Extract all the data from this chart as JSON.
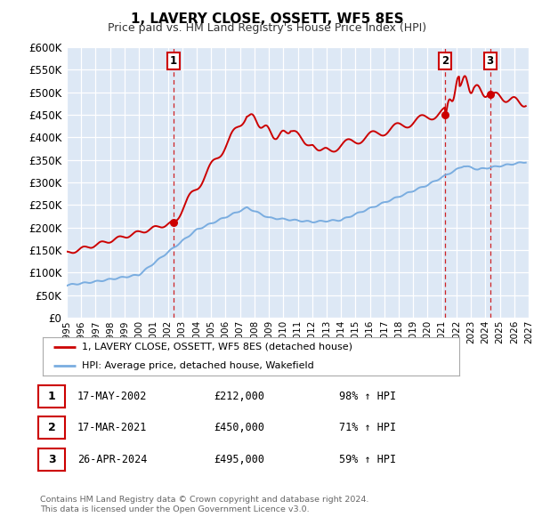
{
  "title": "1, LAVERY CLOSE, OSSETT, WF5 8ES",
  "subtitle": "Price paid vs. HM Land Registry's House Price Index (HPI)",
  "red_color": "#cc0000",
  "blue_color": "#7aade0",
  "background_color": "#ffffff",
  "plot_bg": "#dde8f5",
  "grid_color": "#ffffff",
  "sale_points": [
    {
      "label": "1",
      "date_x": 2002.38,
      "price": 212000,
      "date_str": "17-MAY-2002",
      "pct": "98%"
    },
    {
      "label": "2",
      "date_x": 2021.21,
      "price": 450000,
      "date_str": "17-MAR-2021",
      "pct": "71%"
    },
    {
      "label": "3",
      "date_x": 2024.32,
      "price": 495000,
      "date_str": "26-APR-2024",
      "pct": "59%"
    }
  ],
  "legend_entries": [
    "1, LAVERY CLOSE, OSSETT, WF5 8ES (detached house)",
    "HPI: Average price, detached house, Wakefield"
  ],
  "footer_line1": "Contains HM Land Registry data © Crown copyright and database right 2024.",
  "footer_line2": "This data is licensed under the Open Government Licence v3.0.",
  "ylim": [
    0,
    600000
  ],
  "xlim": [
    1995,
    2027
  ],
  "yticks": [
    0,
    50000,
    100000,
    150000,
    200000,
    250000,
    300000,
    350000,
    400000,
    450000,
    500000,
    550000,
    600000
  ],
  "xticks": [
    1995,
    1996,
    1997,
    1998,
    1999,
    2000,
    2001,
    2002,
    2003,
    2004,
    2005,
    2006,
    2007,
    2008,
    2009,
    2010,
    2011,
    2012,
    2013,
    2014,
    2015,
    2016,
    2017,
    2018,
    2019,
    2020,
    2021,
    2022,
    2023,
    2024,
    2025,
    2026,
    2027
  ]
}
